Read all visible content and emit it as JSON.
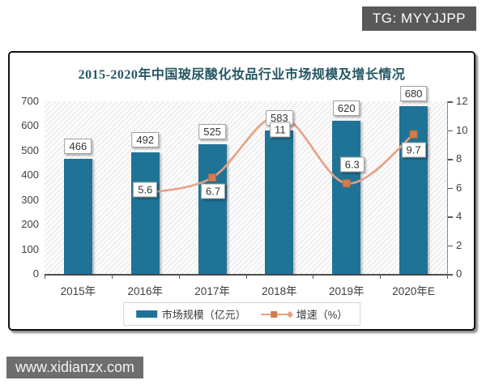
{
  "overlays": {
    "tg_badge": "TG: MYYJJPP",
    "watermark": "www.xidianzx.com"
  },
  "chart_data": {
    "type": "bar",
    "title": "2015-2020年中国玻尿酸化妆品行业市场规模及增长情况",
    "categories": [
      "2015年",
      "2016年",
      "2017年",
      "2018年",
      "2019年",
      "2020年E"
    ],
    "series": [
      {
        "name": "市场规模（亿元）",
        "type": "bar",
        "axis": "left",
        "color": "#1F7396",
        "values": [
          466,
          492,
          525,
          583,
          620,
          680
        ],
        "labels": [
          "466",
          "492",
          "525",
          "583",
          "620",
          "680"
        ]
      },
      {
        "name": "增速（%）",
        "type": "line",
        "axis": "right",
        "color": "#E7A084",
        "marker_color": "#CF7E51",
        "values": [
          null,
          5.6,
          6.7,
          11,
          6.3,
          9.7
        ],
        "labels": [
          null,
          "5.6",
          "6.7",
          "11",
          "6.3",
          "9.7"
        ],
        "label_offsets": [
          null,
          [
            0,
            -5
          ],
          [
            1,
            17
          ],
          [
            1,
            17
          ],
          [
            7,
            -23
          ],
          [
            0,
            19
          ]
        ]
      }
    ],
    "left_axis": {
      "min": 0,
      "max": 700,
      "step": 100,
      "tick_labels": [
        "0",
        "100",
        "200",
        "300",
        "400",
        "500",
        "600",
        "700"
      ]
    },
    "right_axis": {
      "min": 0,
      "max": 12,
      "step": 2,
      "tick_labels": [
        "0",
        "2",
        "4",
        "6",
        "8",
        "10",
        "12"
      ]
    },
    "legend": [
      "市场规模（亿元）",
      "增速（%）"
    ],
    "legend_position": "bottom",
    "grid": false,
    "plot_background": "diagonal-hatch"
  },
  "colors": {
    "bar": "#1F7396",
    "line": "#E7A084",
    "marker": "#CF7E51",
    "marker_border": "#B5683C",
    "title": "#245663",
    "axis_text": "#3F3F3F",
    "badge_bg": "#58595B",
    "watermark_bg": "#6E6E6E"
  }
}
